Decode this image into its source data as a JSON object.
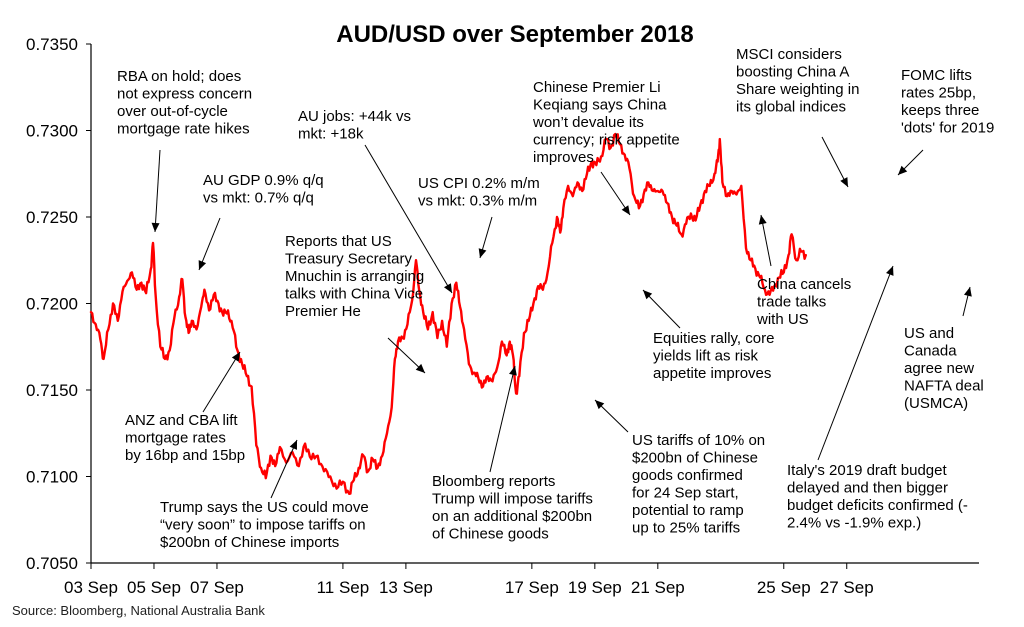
{
  "chart_data": {
    "type": "line",
    "title": "AUD/USD over September 2018",
    "source": "Source: Bloomberg, National Australia Bank",
    "ylim": [
      0.705,
      0.735
    ],
    "yticks": [
      "0.7050",
      "0.7100",
      "0.7150",
      "0.7200",
      "0.7250",
      "0.7300",
      "0.7350"
    ],
    "xlim": [
      0,
      28.2
    ],
    "xticks": [
      {
        "x": 0,
        "label": "03 Sep"
      },
      {
        "x": 2,
        "label": "05 Sep"
      },
      {
        "x": 4,
        "label": "07 Sep"
      },
      {
        "x": 8,
        "label": "11 Sep"
      },
      {
        "x": 10,
        "label": "13 Sep"
      },
      {
        "x": 14,
        "label": "17 Sep"
      },
      {
        "x": 16,
        "label": "19 Sep"
      },
      {
        "x": 18,
        "label": "21 Sep"
      },
      {
        "x": 22,
        "label": "25 Sep"
      },
      {
        "x": 24,
        "label": "27 Sep"
      }
    ],
    "grid": false,
    "legend": "none",
    "series": [
      {
        "color": "#ff0000",
        "points": [
          [
            0.0,
            0.7195
          ],
          [
            0.15,
            0.7188
          ],
          [
            0.3,
            0.7179
          ],
          [
            0.4,
            0.7168
          ],
          [
            0.55,
            0.7185
          ],
          [
            0.7,
            0.72
          ],
          [
            0.85,
            0.719
          ],
          [
            1.0,
            0.7207
          ],
          [
            1.15,
            0.7213
          ],
          [
            1.3,
            0.7218
          ],
          [
            1.45,
            0.7208
          ],
          [
            1.6,
            0.7212
          ],
          [
            1.75,
            0.7206
          ],
          [
            1.9,
            0.722
          ],
          [
            1.97,
            0.7235
          ],
          [
            2.05,
            0.7205
          ],
          [
            2.2,
            0.7175
          ],
          [
            2.35,
            0.7168
          ],
          [
            2.5,
            0.7173
          ],
          [
            2.65,
            0.7192
          ],
          [
            2.8,
            0.7204
          ],
          [
            2.9,
            0.7214
          ],
          [
            3.0,
            0.7192
          ],
          [
            3.1,
            0.7183
          ],
          [
            3.2,
            0.719
          ],
          [
            3.35,
            0.7185
          ],
          [
            3.5,
            0.7198
          ],
          [
            3.6,
            0.7208
          ],
          [
            3.75,
            0.7196
          ],
          [
            3.9,
            0.7205
          ],
          [
            4.05,
            0.72
          ],
          [
            4.2,
            0.7193
          ],
          [
            4.35,
            0.7196
          ],
          [
            4.5,
            0.7186
          ],
          [
            4.65,
            0.7173
          ],
          [
            4.8,
            0.7165
          ],
          [
            4.95,
            0.7158
          ],
          [
            5.1,
            0.7152
          ],
          [
            5.25,
            0.7118
          ],
          [
            5.4,
            0.7105
          ],
          [
            5.55,
            0.7099
          ],
          [
            5.7,
            0.7112
          ],
          [
            5.85,
            0.7106
          ],
          [
            6.0,
            0.7117
          ],
          [
            6.2,
            0.7108
          ],
          [
            6.4,
            0.7114
          ],
          [
            6.6,
            0.7106
          ],
          [
            6.8,
            0.7119
          ],
          [
            7.0,
            0.711
          ],
          [
            7.2,
            0.7112
          ],
          [
            7.4,
            0.7103
          ],
          [
            7.6,
            0.71
          ],
          [
            7.8,
            0.7093
          ],
          [
            8.0,
            0.7097
          ],
          [
            8.2,
            0.709
          ],
          [
            8.35,
            0.7098
          ],
          [
            8.5,
            0.7105
          ],
          [
            8.65,
            0.7112
          ],
          [
            8.8,
            0.7103
          ],
          [
            8.95,
            0.711
          ],
          [
            9.1,
            0.7105
          ],
          [
            9.25,
            0.7112
          ],
          [
            9.4,
            0.7125
          ],
          [
            9.55,
            0.714
          ],
          [
            9.65,
            0.7168
          ],
          [
            9.75,
            0.7178
          ],
          [
            9.9,
            0.718
          ],
          [
            10.05,
            0.7188
          ],
          [
            10.2,
            0.7202
          ],
          [
            10.32,
            0.7225
          ],
          [
            10.42,
            0.7208
          ],
          [
            10.55,
            0.7195
          ],
          [
            10.7,
            0.7185
          ],
          [
            10.85,
            0.7195
          ],
          [
            11.0,
            0.718
          ],
          [
            11.15,
            0.719
          ],
          [
            11.3,
            0.7175
          ],
          [
            11.45,
            0.72
          ],
          [
            11.6,
            0.7212
          ],
          [
            11.72,
            0.7198
          ],
          [
            11.85,
            0.7185
          ],
          [
            12.0,
            0.7165
          ],
          [
            12.15,
            0.716
          ],
          [
            12.3,
            0.7157
          ],
          [
            12.45,
            0.7152
          ],
          [
            12.6,
            0.7158
          ],
          [
            12.75,
            0.7155
          ],
          [
            12.9,
            0.7163
          ],
          [
            13.05,
            0.7178
          ],
          [
            13.2,
            0.717
          ],
          [
            13.3,
            0.7178
          ],
          [
            13.4,
            0.717
          ],
          [
            13.5,
            0.7148
          ],
          [
            13.6,
            0.7158
          ],
          [
            13.75,
            0.7183
          ],
          [
            13.9,
            0.719
          ],
          [
            14.05,
            0.72
          ],
          [
            14.2,
            0.721
          ],
          [
            14.35,
            0.7208
          ],
          [
            14.5,
            0.7218
          ],
          [
            14.65,
            0.7235
          ],
          [
            14.8,
            0.725
          ],
          [
            14.9,
            0.7241
          ],
          [
            15.0,
            0.7255
          ],
          [
            15.15,
            0.7268
          ],
          [
            15.3,
            0.7262
          ],
          [
            15.45,
            0.727
          ],
          [
            15.6,
            0.7265
          ],
          [
            15.75,
            0.7275
          ],
          [
            15.9,
            0.7282
          ],
          [
            16.05,
            0.728
          ],
          [
            16.2,
            0.7285
          ],
          [
            16.35,
            0.7295
          ],
          [
            16.5,
            0.729
          ],
          [
            16.65,
            0.7298
          ],
          [
            16.8,
            0.7292
          ],
          [
            16.95,
            0.7286
          ],
          [
            17.1,
            0.7278
          ],
          [
            17.25,
            0.7262
          ],
          [
            17.4,
            0.7255
          ],
          [
            17.55,
            0.7263
          ],
          [
            17.7,
            0.727
          ],
          [
            17.85,
            0.7265
          ],
          [
            18.0,
            0.7265
          ],
          [
            18.15,
            0.7265
          ],
          [
            18.3,
            0.7258
          ],
          [
            18.45,
            0.725
          ],
          [
            18.6,
            0.7245
          ],
          [
            18.75,
            0.724
          ],
          [
            18.9,
            0.7246
          ],
          [
            19.05,
            0.7252
          ],
          [
            19.2,
            0.7248
          ],
          [
            19.35,
            0.7257
          ],
          [
            19.5,
            0.7265
          ],
          [
            19.65,
            0.7268
          ],
          [
            19.8,
            0.7275
          ],
          [
            19.9,
            0.7282
          ],
          [
            19.97,
            0.7295
          ],
          [
            20.05,
            0.727
          ],
          [
            20.2,
            0.7262
          ],
          [
            20.35,
            0.7265
          ],
          [
            20.5,
            0.7263
          ],
          [
            20.65,
            0.7268
          ],
          [
            20.8,
            0.7232
          ],
          [
            20.95,
            0.7225
          ],
          [
            21.1,
            0.722
          ],
          [
            21.25,
            0.7215
          ],
          [
            21.4,
            0.7208
          ],
          [
            21.55,
            0.7205
          ],
          [
            21.7,
            0.721
          ],
          [
            21.85,
            0.7215
          ],
          [
            22.0,
            0.7218
          ],
          [
            22.15,
            0.7228
          ],
          [
            22.25,
            0.724
          ],
          [
            22.4,
            0.7225
          ],
          [
            22.55,
            0.723
          ],
          [
            22.7,
            0.7228
          ]
        ]
      }
    ],
    "annotations": [
      {
        "lines": [
          "RBA on hold; does",
          "not express concern",
          "over out-of-cycle",
          "mortgage rate hikes"
        ]
      },
      {
        "lines": [
          "AU GDP 0.9% q/q",
          "vs mkt: 0.7% q/q"
        ]
      },
      {
        "lines": [
          "ANZ and CBA lift",
          "mortgage rates",
          "by 16bp and 15bp"
        ]
      },
      {
        "lines": [
          "AU jobs: +44k vs",
          "mkt: +18k"
        ]
      },
      {
        "lines": [
          "Reports that US",
          "Treasury Secretary",
          "Mnuchin is arranging",
          "talks with China Vice",
          "Premier He"
        ]
      },
      {
        "lines": [
          "Trump says the US could move",
          "“very soon” to impose tariffs on",
          "$200bn of Chinese imports"
        ]
      },
      {
        "lines": [
          "US CPI  0.2% m/m",
          "vs mkt: 0.3% m/m"
        ]
      },
      {
        "lines": [
          "Bloomberg reports",
          "Trump will impose tariffs",
          "on an additional $200bn",
          "of Chinese goods"
        ]
      },
      {
        "lines": [
          "Chinese Premier Li",
          "Keqiang says China",
          "won’t devalue its",
          "currency; risk appetite",
          "improves"
        ]
      },
      {
        "lines": [
          "Equities rally, core",
          "yields lift as risk",
          "appetite improves"
        ]
      },
      {
        "lines": [
          "US tariffs of 10% on",
          "$200bn of Chinese",
          "goods confirmed",
          "for 24 Sep start,",
          "potential to ramp",
          "up to 25% tariffs"
        ]
      },
      {
        "lines": [
          "MSCI considers",
          "boosting China A",
          "Share weighting in",
          "its global indices"
        ]
      },
      {
        "lines": [
          "China cancels",
          "trade talks",
          "with US"
        ]
      },
      {
        "lines": [
          "FOMC lifts",
          "rates 25bp,",
          "keeps three",
          "'dots' for 2019"
        ]
      },
      {
        "lines": [
          "Italy's 2019 draft budget",
          "delayed and then bigger",
          "budget deficits confirmed (-",
          "2.4% vs -1.9% exp.)"
        ]
      },
      {
        "lines": [
          "US and",
          "Canada",
          "agree new",
          "NAFTA deal",
          "(USMCA)"
        ]
      }
    ]
  }
}
